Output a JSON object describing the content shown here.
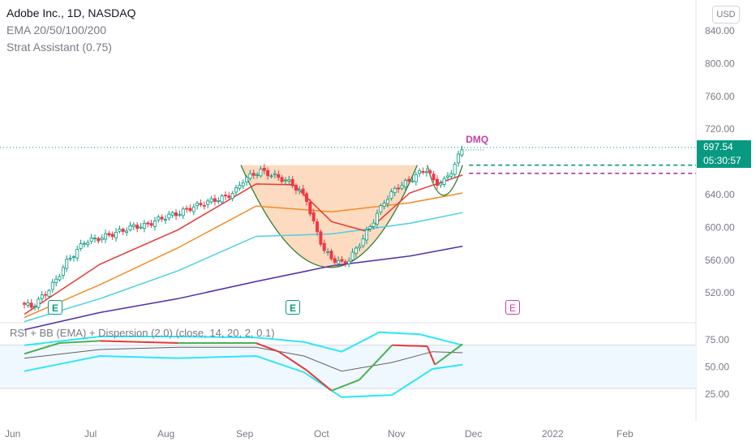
{
  "header": {
    "title": "Adobe Inc., 1D, NASDAQ",
    "indicator1": "EMA 20/50/100/200",
    "indicator2": "Strat Assistant (0.75)",
    "currency": "USD"
  },
  "price_tag": {
    "price": "697.54",
    "countdown": "05:30:57"
  },
  "oscillator_title": "RSI + BB (EMA) + Dispersion (2.0) (close, 14, 20, 2, 0.1)",
  "pattern_label": "DMQ",
  "earnings_markers": [
    {
      "label": "E",
      "date": "2021-06-16",
      "future": false
    },
    {
      "label": "E",
      "date": "2021-09-21",
      "future": false
    },
    {
      "label": "E",
      "date": "2021-12-16",
      "future": true
    }
  ],
  "colors": {
    "up": "#089981",
    "down": "#f23645",
    "ema20": "#e53935",
    "ema50": "#f28c28",
    "ema100": "#4dd0e1",
    "ema200": "#512da8",
    "pattern_fill": "#fbd5b5",
    "pattern_curve": "#2e7d32",
    "rsi_bb": "#2ee6f7",
    "rsi_up": "#4caf50",
    "rsi_down": "#e53935"
  },
  "chart_data": {
    "type": "candlestick",
    "title": "Adobe Inc., 1D, NASDAQ",
    "y_axis": {
      "ticks": [
        "840.00",
        "800.00",
        "760.00",
        "720.00",
        "680.00",
        "640.00",
        "600.00",
        "560.00",
        "520.00"
      ],
      "range": [
        495,
        860
      ]
    },
    "x_axis": {
      "ticks": [
        "Jun",
        "Jul",
        "Aug",
        "Sep",
        "Oct",
        "Nov",
        "Dec",
        "2022",
        "Feb"
      ]
    },
    "last_price": 697.54,
    "reference_levels": [
      {
        "name": "green-dashed",
        "value": 676
      },
      {
        "name": "purple-dashed",
        "value": 666
      }
    ],
    "close_path": [
      [
        "2021-06-01",
        506
      ],
      [
        "2021-06-04",
        503
      ],
      [
        "2021-06-09",
        518
      ],
      [
        "2021-06-14",
        537
      ],
      [
        "2021-06-17",
        555
      ],
      [
        "2021-06-22",
        572
      ],
      [
        "2021-06-25",
        583
      ],
      [
        "2021-06-30",
        586
      ],
      [
        "2021-07-06",
        592
      ],
      [
        "2021-07-09",
        595
      ],
      [
        "2021-07-14",
        601
      ],
      [
        "2021-07-19",
        602
      ],
      [
        "2021-07-23",
        608
      ],
      [
        "2021-07-28",
        614
      ],
      [
        "2021-08-02",
        618
      ],
      [
        "2021-08-06",
        624
      ],
      [
        "2021-08-11",
        629
      ],
      [
        "2021-08-16",
        634
      ],
      [
        "2021-08-20",
        637
      ],
      [
        "2021-08-24",
        645
      ],
      [
        "2021-08-27",
        658
      ],
      [
        "2021-08-31",
        665
      ],
      [
        "2021-09-03",
        669
      ],
      [
        "2021-09-08",
        663
      ],
      [
        "2021-09-13",
        657
      ],
      [
        "2021-09-16",
        651
      ],
      [
        "2021-09-21",
        635
      ],
      [
        "2021-09-23",
        612
      ],
      [
        "2021-09-28",
        572
      ],
      [
        "2021-10-01",
        562
      ],
      [
        "2021-10-05",
        556
      ],
      [
        "2021-10-08",
        561
      ],
      [
        "2021-10-13",
        584
      ],
      [
        "2021-10-18",
        610
      ],
      [
        "2021-10-22",
        632
      ],
      [
        "2021-10-27",
        649
      ],
      [
        "2021-11-01",
        657
      ],
      [
        "2021-11-04",
        665
      ],
      [
        "2021-11-08",
        671
      ],
      [
        "2021-11-11",
        653
      ],
      [
        "2021-11-15",
        657
      ],
      [
        "2021-11-18",
        671
      ],
      [
        "2021-11-22",
        697.54
      ]
    ],
    "ema20_path": [
      [
        "2021-06-01",
        494
      ],
      [
        "2021-07-01",
        555
      ],
      [
        "2021-08-01",
        597
      ],
      [
        "2021-09-01",
        653
      ],
      [
        "2021-09-16",
        652
      ],
      [
        "2021-10-01",
        607
      ],
      [
        "2021-10-15",
        595
      ],
      [
        "2021-11-01",
        642
      ],
      [
        "2021-11-22",
        664
      ]
    ],
    "ema50_path": [
      [
        "2021-06-01",
        490
      ],
      [
        "2021-07-01",
        530
      ],
      [
        "2021-08-01",
        575
      ],
      [
        "2021-09-01",
        626
      ],
      [
        "2021-10-01",
        619
      ],
      [
        "2021-11-01",
        630
      ],
      [
        "2021-11-22",
        642
      ]
    ],
    "ema100_path": [
      [
        "2021-06-01",
        485
      ],
      [
        "2021-07-01",
        513
      ],
      [
        "2021-08-01",
        547
      ],
      [
        "2021-09-01",
        589
      ],
      [
        "2021-10-01",
        592
      ],
      [
        "2021-11-01",
        605
      ],
      [
        "2021-11-22",
        618
      ]
    ],
    "ema200_path": [
      [
        "2021-06-01",
        475
      ],
      [
        "2021-07-01",
        496
      ],
      [
        "2021-08-01",
        513
      ],
      [
        "2021-09-01",
        534
      ],
      [
        "2021-10-01",
        553
      ],
      [
        "2021-11-01",
        565
      ],
      [
        "2021-11-22",
        577
      ]
    ],
    "pattern": {
      "rim_price": 676,
      "cup_bottom": 551,
      "handle_bottom": 640,
      "start": "2021-08-26",
      "bottom": "2021-10-01",
      "end": "2021-11-22"
    },
    "oscillator": {
      "y_ticks": [
        "75.00",
        "50.00",
        "25.00"
      ],
      "band_range": [
        30,
        70
      ],
      "rsi_path": [
        [
          "2021-06-01",
          62
        ],
        [
          "2021-06-15",
          72
        ],
        [
          "2021-07-01",
          74
        ],
        [
          "2021-08-01",
          72
        ],
        [
          "2021-09-01",
          72
        ],
        [
          "2021-09-10",
          64
        ],
        [
          "2021-09-21",
          47
        ],
        [
          "2021-10-01",
          28
        ],
        [
          "2021-10-12",
          38
        ],
        [
          "2021-10-25",
          70
        ],
        [
          "2021-11-08",
          69
        ],
        [
          "2021-11-11",
          52
        ],
        [
          "2021-11-22",
          71
        ]
      ],
      "upper_band_path": [
        [
          "2021-06-01",
          70
        ],
        [
          "2021-07-01",
          78
        ],
        [
          "2021-08-01",
          78
        ],
        [
          "2021-09-01",
          77
        ],
        [
          "2021-09-20",
          73
        ],
        [
          "2021-10-05",
          64
        ],
        [
          "2021-10-20",
          82
        ],
        [
          "2021-11-05",
          80
        ],
        [
          "2021-11-22",
          70
        ]
      ],
      "mid_band_path": [
        [
          "2021-06-01",
          58
        ],
        [
          "2021-07-01",
          66
        ],
        [
          "2021-08-01",
          68
        ],
        [
          "2021-09-01",
          68
        ],
        [
          "2021-09-20",
          60
        ],
        [
          "2021-10-05",
          46
        ],
        [
          "2021-10-25",
          54
        ],
        [
          "2021-11-10",
          64
        ],
        [
          "2021-11-22",
          63
        ]
      ],
      "lower_band_path": [
        [
          "2021-06-01",
          46
        ],
        [
          "2021-07-01",
          60
        ],
        [
          "2021-08-01",
          58
        ],
        [
          "2021-09-01",
          60
        ],
        [
          "2021-09-20",
          45
        ],
        [
          "2021-10-05",
          22
        ],
        [
          "2021-10-25",
          24
        ],
        [
          "2021-11-10",
          48
        ],
        [
          "2021-11-22",
          52
        ]
      ]
    }
  }
}
